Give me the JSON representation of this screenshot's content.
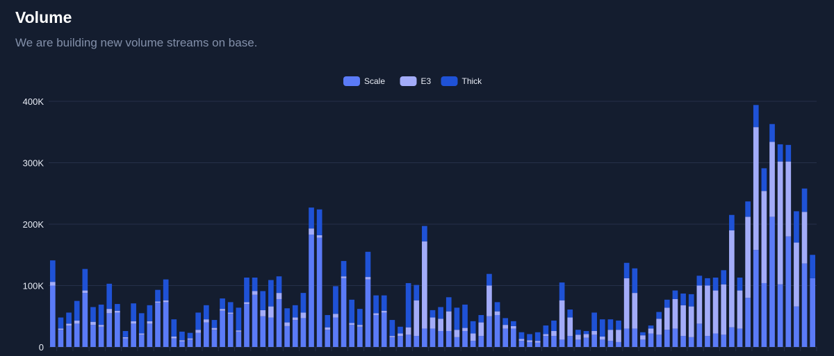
{
  "header": {
    "title": "Volume",
    "subtitle": "We are building new volume streams on base."
  },
  "colors": {
    "background": "#141d2f",
    "grid": "#263049",
    "tick_text": "#e8ecf5",
    "legend_text": "#e8ecf5",
    "Scale": "#5b7bf7",
    "E3": "#a3acf9",
    "Thick": "#1f52d6"
  },
  "chart_data": {
    "type": "bar",
    "stacked": true,
    "title": "Volume",
    "subtitle": "We are building new volume streams on base.",
    "legend_position": "top-center",
    "grid": true,
    "ylim": [
      0,
      400000
    ],
    "yticks": [
      {
        "value": 0,
        "label": "0"
      },
      {
        "value": 100000,
        "label": "100K"
      },
      {
        "value": 200000,
        "label": "200K"
      },
      {
        "value": 300000,
        "label": "300K"
      },
      {
        "value": 400000,
        "label": "400K"
      }
    ],
    "series": [
      {
        "name": "Scale",
        "values": [
          100000,
          28000,
          35000,
          38000,
          88000,
          36000,
          33000,
          55000,
          56000,
          14000,
          38000,
          20000,
          38000,
          72000,
          73000,
          14000,
          9000,
          12000,
          23000,
          40000,
          28000,
          59000,
          54000,
          25000,
          70000,
          85000,
          50000,
          48000,
          78000,
          34000,
          44000,
          47000,
          183000,
          178000,
          28000,
          48000,
          112000,
          36000,
          33000,
          110000,
          52000,
          56000,
          16000,
          18000,
          20000,
          18000,
          30000,
          30000,
          26000,
          26000,
          16000,
          26000,
          10000,
          18000,
          50000,
          52000,
          30000,
          30000,
          10000,
          8000,
          7000,
          18000,
          18000,
          12000,
          18000,
          12000,
          15000,
          20000,
          12000,
          10000,
          8000,
          30000,
          30000,
          12000,
          22000,
          20000,
          28000,
          30000,
          18000,
          16000,
          38000,
          18000,
          22000,
          20000,
          32000,
          30000,
          80000,
          158000,
          104000,
          212000,
          102000,
          180000,
          66000,
          136000,
          112000
        ]
      },
      {
        "value_note": "",
        "name": "E3",
        "values": [
          6000,
          2000,
          3000,
          5000,
          4000,
          5000,
          3000,
          7000,
          3000,
          2000,
          4000,
          2000,
          4000,
          2000,
          3000,
          3000,
          2000,
          2000,
          5000,
          5000,
          3000,
          3000,
          2000,
          2000,
          3000,
          6000,
          10000,
          18000,
          10000,
          6000,
          4000,
          9000,
          10000,
          4000,
          4000,
          6000,
          3000,
          3000,
          3000,
          4000,
          3000,
          3000,
          2000,
          4000,
          12000,
          58000,
          142000,
          18000,
          20000,
          32000,
          12000,
          5000,
          12000,
          22000,
          50000,
          6000,
          6000,
          4000,
          3000,
          3000,
          3000,
          3000,
          8000,
          64000,
          30000,
          8000,
          6000,
          6000,
          5000,
          18000,
          20000,
          82000,
          58000,
          7000,
          8000,
          26000,
          36000,
          48000,
          50000,
          50000,
          62000,
          82000,
          70000,
          82000,
          158000,
          62000,
          132000,
          200000,
          150000,
          122000,
          200000,
          122000,
          104000,
          84000,
          0
        ]
      },
      {
        "name": "Thick",
        "values": [
          35000,
          18000,
          18000,
          32000,
          35000,
          24000,
          33000,
          41000,
          11000,
          10000,
          29000,
          33000,
          26000,
          19000,
          34000,
          28000,
          14000,
          9000,
          28000,
          23000,
          13000,
          17000,
          17000,
          37000,
          40000,
          22000,
          31000,
          43000,
          27000,
          23000,
          20000,
          32000,
          34000,
          42000,
          20000,
          45000,
          25000,
          38000,
          26000,
          41000,
          29000,
          25000,
          26000,
          11000,
          72000,
          25000,
          25000,
          12000,
          19000,
          23000,
          36000,
          38000,
          20000,
          12000,
          19000,
          15000,
          11000,
          8000,
          11000,
          10000,
          14000,
          14000,
          17000,
          29000,
          13000,
          8000,
          5000,
          30000,
          28000,
          17000,
          15000,
          25000,
          40000,
          5000,
          5000,
          11000,
          13000,
          14000,
          19000,
          20000,
          16000,
          12000,
          21000,
          23000,
          25000,
          21000,
          25000,
          36000,
          37000,
          29000,
          28000,
          27000,
          51000,
          38000,
          38000
        ]
      }
    ]
  }
}
